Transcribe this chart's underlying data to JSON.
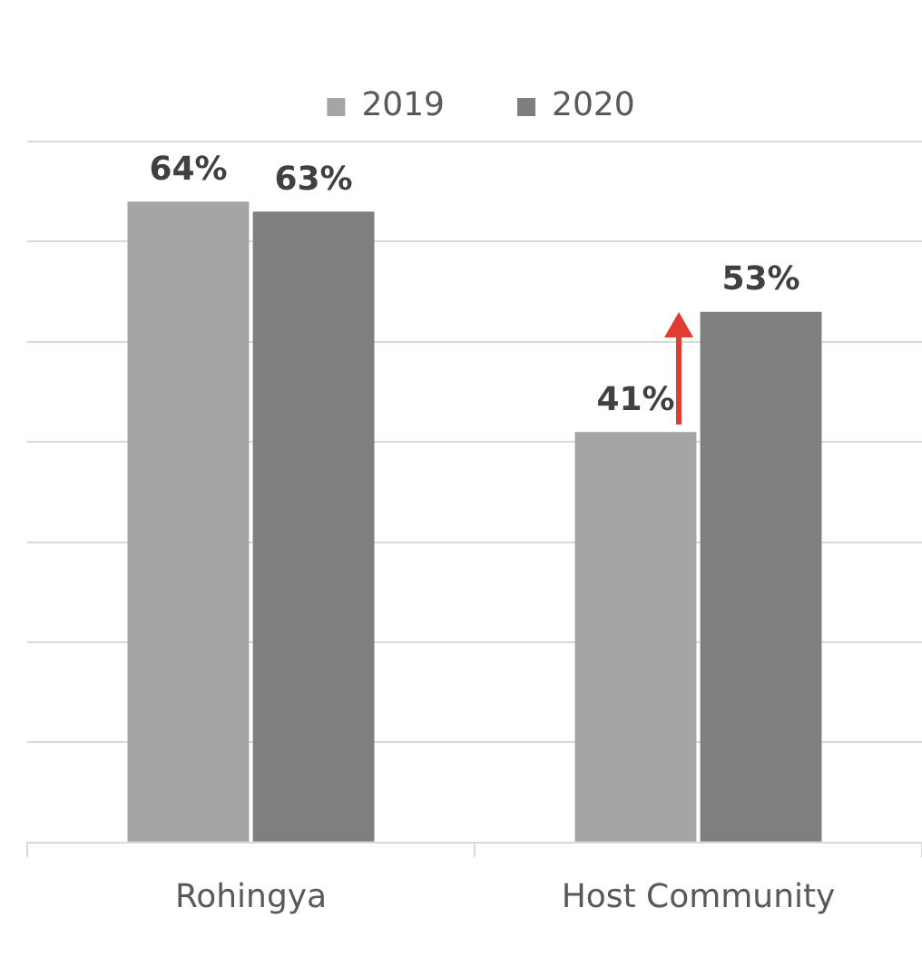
{
  "chart_data": {
    "type": "bar",
    "categories": [
      "Rohingya",
      "Host Community"
    ],
    "series": [
      {
        "name": "2019",
        "color": "#a5a5a5",
        "values": [
          64,
          41
        ],
        "value_labels": [
          "64%",
          "41%"
        ]
      },
      {
        "name": "2020",
        "color": "#7f7f7f",
        "values": [
          63,
          53
        ],
        "value_labels": [
          "63%",
          "53%"
        ]
      }
    ],
    "grid": "y",
    "legend": "top",
    "tick_labels": "x"
  }
}
